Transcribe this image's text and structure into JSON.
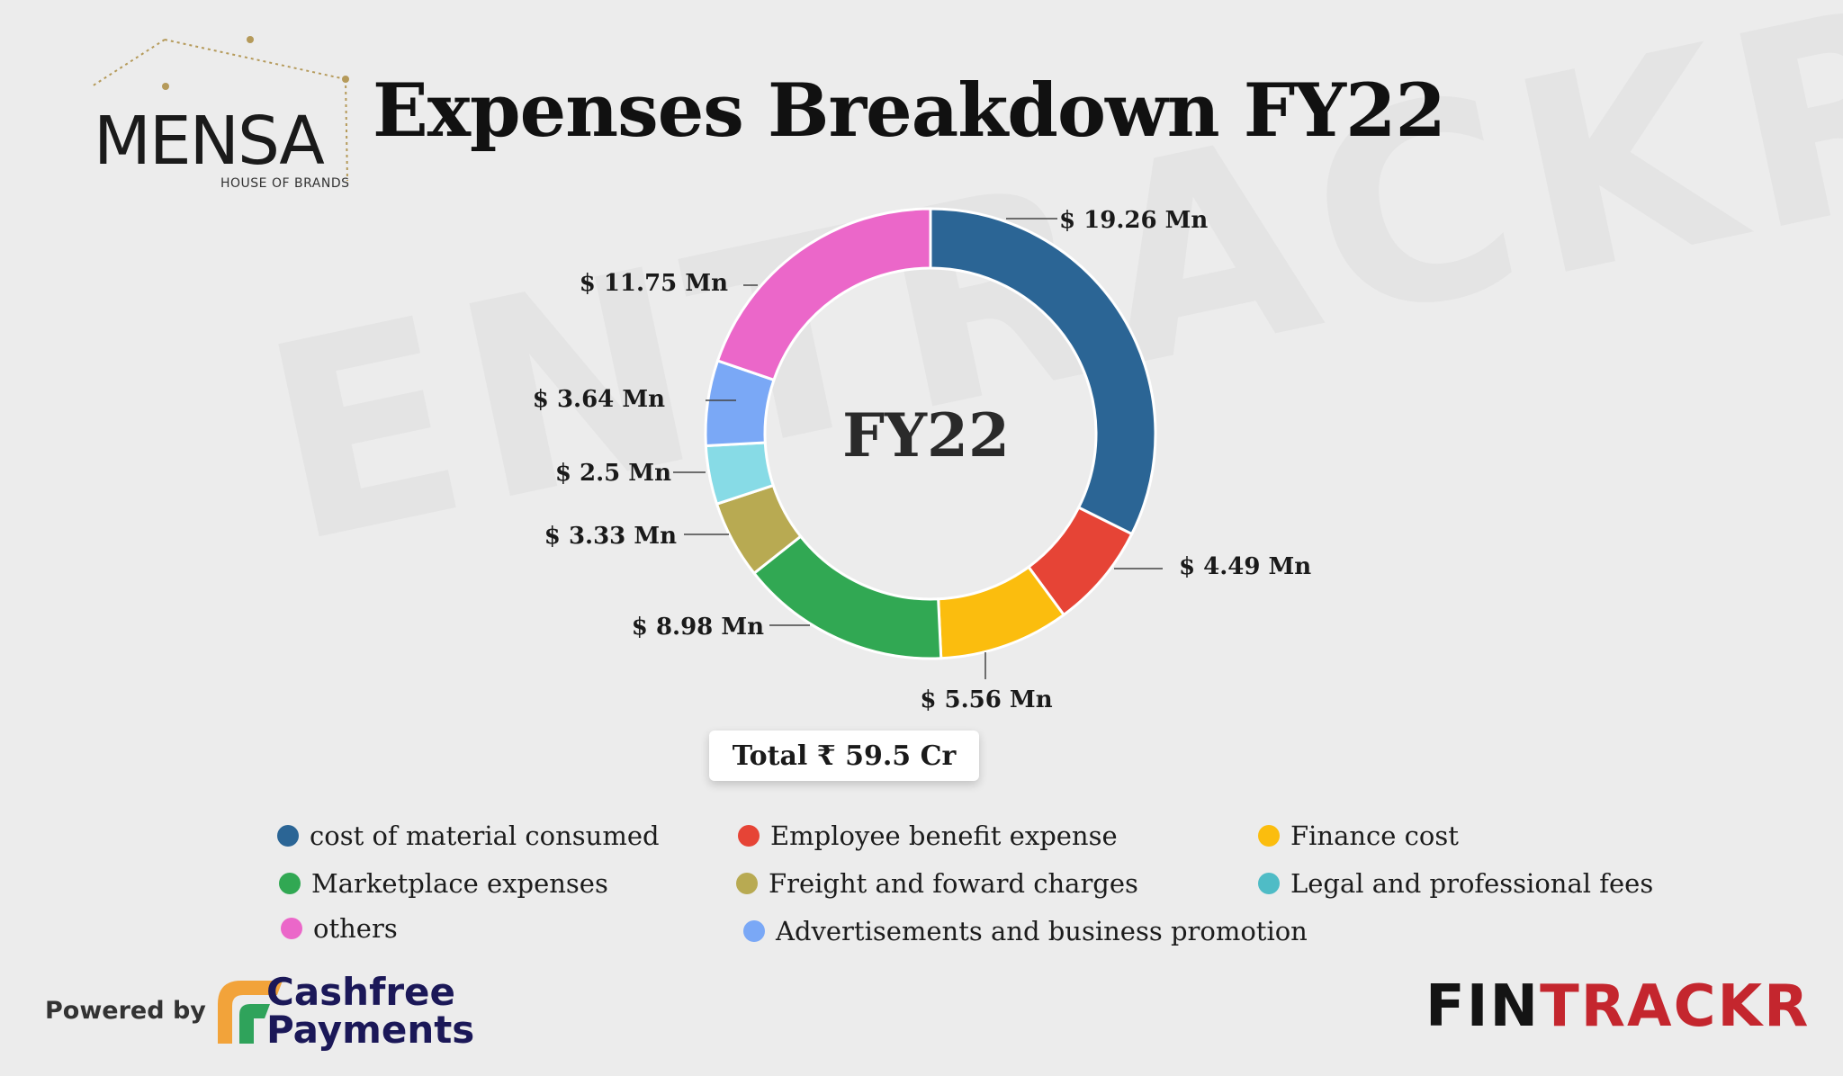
{
  "brand": {
    "logo_word": "MENSA",
    "logo_sub": "HOUSE OF BRANDS"
  },
  "title": "Expenses Breakdown FY22",
  "watermark": "ENTRACKR",
  "chart_data": {
    "type": "pie",
    "style": "donut",
    "center_label": "FY22",
    "unit_prefix": "$",
    "unit_suffix": "Mn",
    "slices": [
      {
        "label": "cost of material consumed",
        "value": 19.26,
        "display": "$ 19.26 Mn",
        "color": "#2b6595"
      },
      {
        "label": "Employee benefit expense",
        "value": 4.49,
        "display": "$ 4.49 Mn",
        "color": "#e64436"
      },
      {
        "label": "Finance cost",
        "value": 5.56,
        "display": "$ 5.56 Mn",
        "color": "#fbbd0e"
      },
      {
        "label": "Marketplace expenses",
        "value": 8.98,
        "display": "$ 8.98 Mn",
        "color": "#31a853"
      },
      {
        "label": "Freight and foward charges",
        "value": 3.33,
        "display": "$ 3.33 Mn",
        "color": "#b8aa52"
      },
      {
        "label": "Legal and professional fees",
        "value": 2.5,
        "display": "$ 2.5 Mn",
        "color": "#87dbe6"
      },
      {
        "label": "Advertisements and business promotion",
        "value": 3.64,
        "display": "$ 3.64 Mn",
        "color": "#7aa8f6"
      },
      {
        "label": "others",
        "value": 11.75,
        "display": "$ 11.75 Mn",
        "color": "#eb67c9"
      }
    ],
    "total_label": "Total ₹ 59.5 Cr"
  },
  "legend": [
    {
      "label": "cost of material consumed",
      "color": "#2b6595"
    },
    {
      "label": "Employee benefit expense",
      "color": "#e64436"
    },
    {
      "label": "Finance cost",
      "color": "#fbbd0e"
    },
    {
      "label": "Marketplace expenses",
      "color": "#31a853"
    },
    {
      "label": "Freight and foward charges",
      "color": "#b8aa52"
    },
    {
      "label": "Legal and professional fees",
      "color": "#4fbcc6"
    },
    {
      "label": "others",
      "color": "#eb67c9"
    },
    {
      "label": "Advertisements and business promotion",
      "color": "#7aa8f6"
    }
  ],
  "footer": {
    "powered_by": "Powered by",
    "cashfree_line1": "Cashfree",
    "cashfree_line2": "Payments",
    "fintrackr_part1": "FIN",
    "fintrackr_part2": "TRACKR",
    "fintrackr_color1": "#141414",
    "fintrackr_color2": "#c4262e"
  }
}
